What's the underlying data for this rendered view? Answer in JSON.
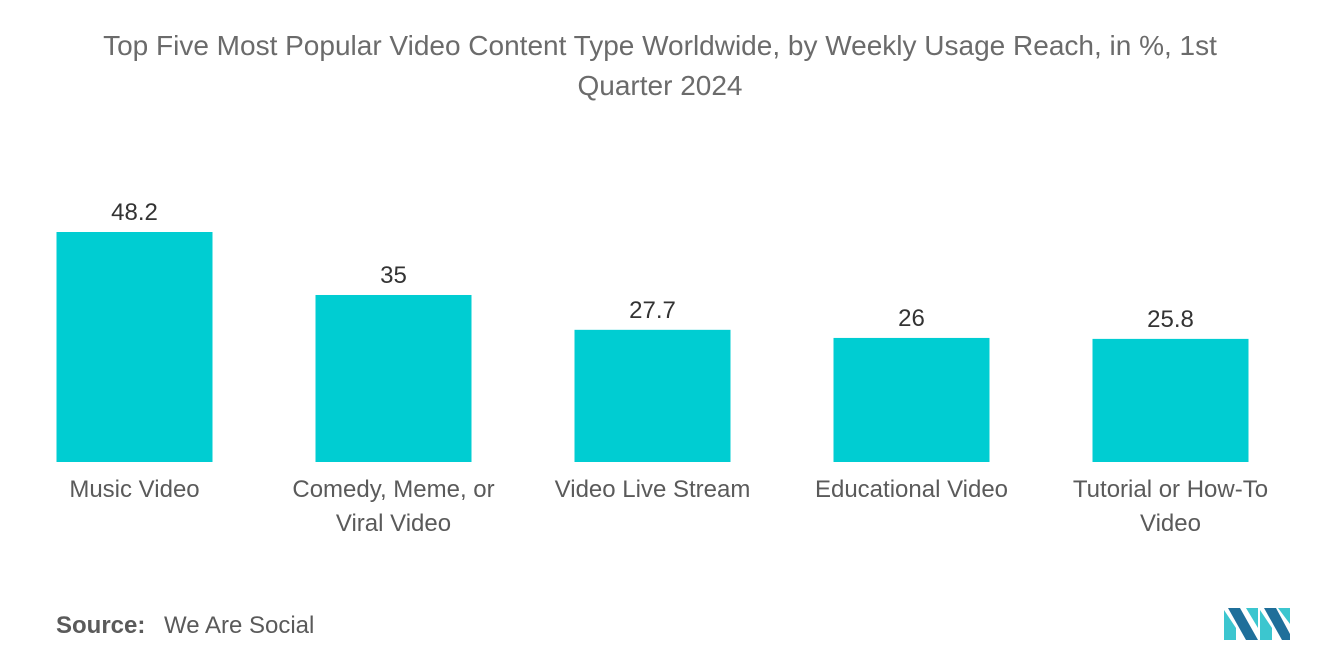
{
  "chart_data": {
    "type": "bar",
    "title_lines": [
      "Top Five Most Popular Video Content Type Worldwide, by Weekly Usage Reach, in %, 1st",
      "Quarter 2024"
    ],
    "categories": [
      [
        "Music Video"
      ],
      [
        "Comedy, Meme, or",
        "Viral Video"
      ],
      [
        "Video Live Stream"
      ],
      [
        "Educational Video"
      ],
      [
        "Tutorial or How-To",
        "Video"
      ]
    ],
    "values": [
      48.2,
      35,
      27.7,
      26,
      25.8
    ],
    "value_labels": [
      "48.2",
      "35",
      "27.7",
      "26",
      "25.8"
    ],
    "bar_color": "#00cdd2",
    "ylim": [
      0,
      48.2
    ],
    "grid": false,
    "legend": "none"
  },
  "colors": {
    "title": "#6b6b6b",
    "tick_label": "#5a5a5a",
    "value_label": "#333333",
    "logo_dark": "#1f6f9a",
    "logo_light": "#3cc6cf"
  },
  "source": {
    "label": "Source:",
    "text": "We Are Social"
  },
  "logo_icon": "mordor-intelligence-logo"
}
